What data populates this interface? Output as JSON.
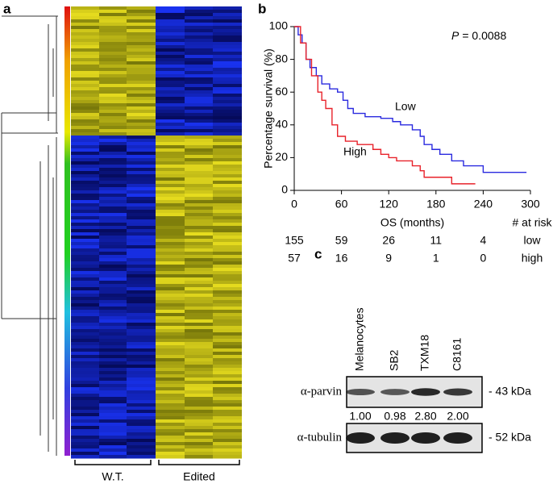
{
  "panel_labels": [
    "a",
    "b",
    "c"
  ],
  "heatmap": {
    "groups": [
      "W.T.",
      "Edited"
    ]
  },
  "chart_data": {
    "type": "line",
    "annotation": {
      "symbol": "P",
      "text": "= 0.0088"
    },
    "x_label": "OS (months)",
    "y_label": "Percentage survival (%)",
    "xlim": [
      0,
      300
    ],
    "xticks": [
      0,
      60,
      120,
      180,
      240,
      300
    ],
    "ylim": [
      0,
      100
    ],
    "yticks": [
      0,
      20,
      40,
      60,
      80,
      100
    ],
    "series": [
      {
        "name": "Low",
        "color": "#2a2adf",
        "x": [
          0,
          5,
          5,
          10,
          10,
          15,
          15,
          20,
          20,
          28,
          28,
          35,
          35,
          45,
          45,
          55,
          55,
          62,
          62,
          68,
          68,
          75,
          75,
          90,
          90,
          110,
          110,
          125,
          125,
          135,
          135,
          150,
          150,
          160,
          160,
          165,
          165,
          175,
          175,
          185,
          185,
          200,
          200,
          215,
          215,
          240,
          240,
          295
        ],
        "values": [
          100,
          100,
          95,
          95,
          90,
          90,
          80,
          80,
          75,
          75,
          70,
          70,
          65,
          65,
          62,
          62,
          60,
          60,
          55,
          55,
          50,
          50,
          47,
          47,
          45,
          45,
          44,
          44,
          42,
          42,
          40,
          40,
          37,
          37,
          33,
          33,
          28,
          28,
          25,
          25,
          22,
          22,
          18,
          18,
          15,
          15,
          11,
          11
        ]
      },
      {
        "name": "High",
        "color": "#e8222a",
        "x": [
          0,
          8,
          8,
          15,
          15,
          22,
          22,
          30,
          30,
          35,
          35,
          40,
          40,
          48,
          48,
          55,
          55,
          65,
          65,
          80,
          80,
          100,
          100,
          110,
          110,
          120,
          120,
          130,
          130,
          150,
          150,
          160,
          160,
          165,
          165,
          200,
          200,
          210,
          210,
          230
        ],
        "values": [
          100,
          100,
          90,
          90,
          80,
          80,
          70,
          70,
          60,
          60,
          55,
          55,
          50,
          50,
          40,
          40,
          33,
          33,
          30,
          30,
          28,
          28,
          25,
          25,
          22,
          22,
          20,
          20,
          18,
          18,
          15,
          15,
          12,
          12,
          8,
          8,
          4,
          4,
          4,
          4
        ]
      }
    ],
    "risk_table": {
      "header": "# at risk",
      "rows": [
        {
          "name": "low",
          "color": "#2a2adf",
          "values": [
            155,
            59,
            26,
            11,
            4
          ]
        },
        {
          "name": "high",
          "color": "#e8222a",
          "values": [
            57,
            16,
            9,
            1,
            0
          ]
        }
      ]
    }
  },
  "blot": {
    "lanes": [
      "Melanocytes",
      "SB2",
      "TXM18",
      "C8161"
    ],
    "rows": [
      {
        "name": "α-parvin",
        "size": "- 43 kDa",
        "quant": [
          "1.00",
          "0.98",
          "2.80",
          "2.00"
        ]
      },
      {
        "name": "α-tubulin",
        "size": "- 52 kDa"
      }
    ]
  }
}
